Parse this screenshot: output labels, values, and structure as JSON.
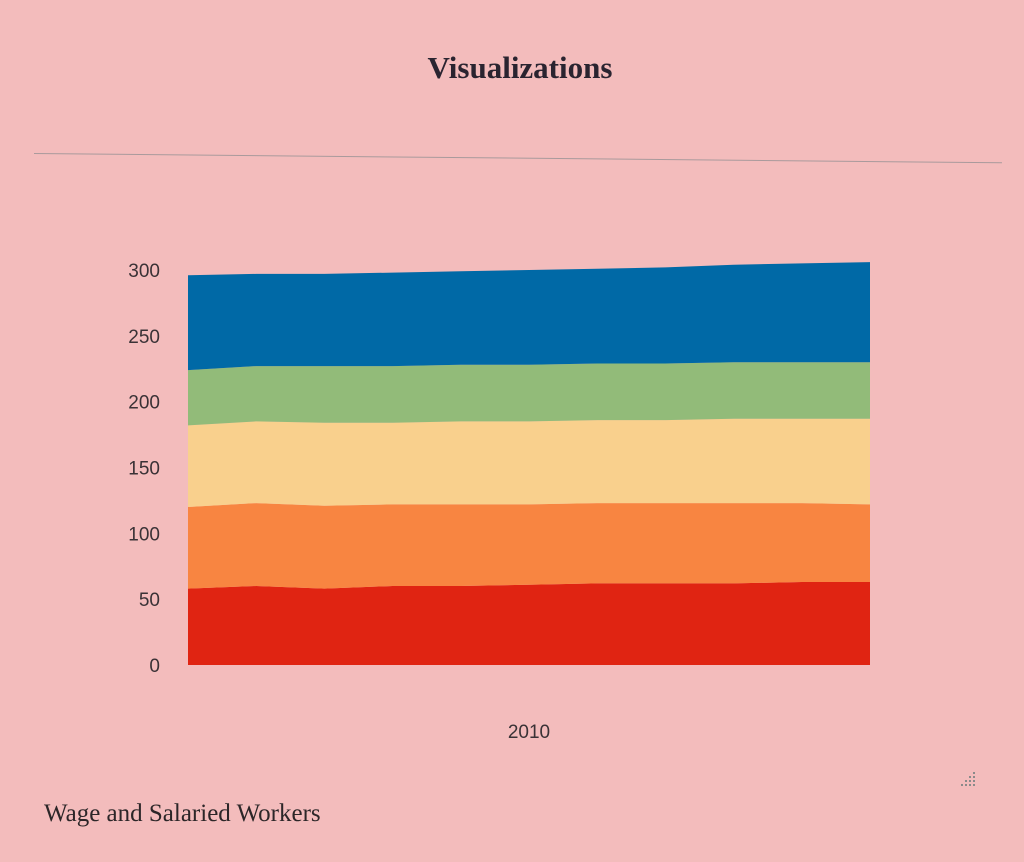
{
  "page": {
    "title": "Visualizations",
    "footer_title": "Wage and Salaried Workers"
  },
  "chart_data": {
    "type": "area",
    "stacked": true,
    "x": [
      2005,
      2006,
      2007,
      2008,
      2009,
      2010,
      2011,
      2012,
      2013,
      2014,
      2015
    ],
    "x_tick_labels": [
      "2010"
    ],
    "y_ticks": [
      0,
      50,
      100,
      150,
      200,
      250,
      300
    ],
    "ylim": [
      0,
      320
    ],
    "grid": false,
    "legend": "none",
    "series": [
      {
        "color": "#e02412",
        "values": [
          58,
          60,
          58,
          60,
          60,
          61,
          62,
          62,
          62,
          63,
          63
        ]
      },
      {
        "color": "#f88541",
        "values": [
          62,
          63,
          63,
          62,
          62,
          61,
          61,
          61,
          61,
          60,
          59
        ]
      },
      {
        "color": "#f9d08d",
        "values": [
          62,
          62,
          63,
          62,
          63,
          63,
          63,
          63,
          64,
          64,
          65
        ]
      },
      {
        "color": "#92bb79",
        "values": [
          42,
          42,
          43,
          43,
          43,
          43,
          43,
          43,
          43,
          43,
          43
        ]
      },
      {
        "color": "#0069a6",
        "values": [
          72,
          70,
          70,
          71,
          71,
          72,
          72,
          73,
          74,
          75,
          76
        ]
      }
    ]
  }
}
